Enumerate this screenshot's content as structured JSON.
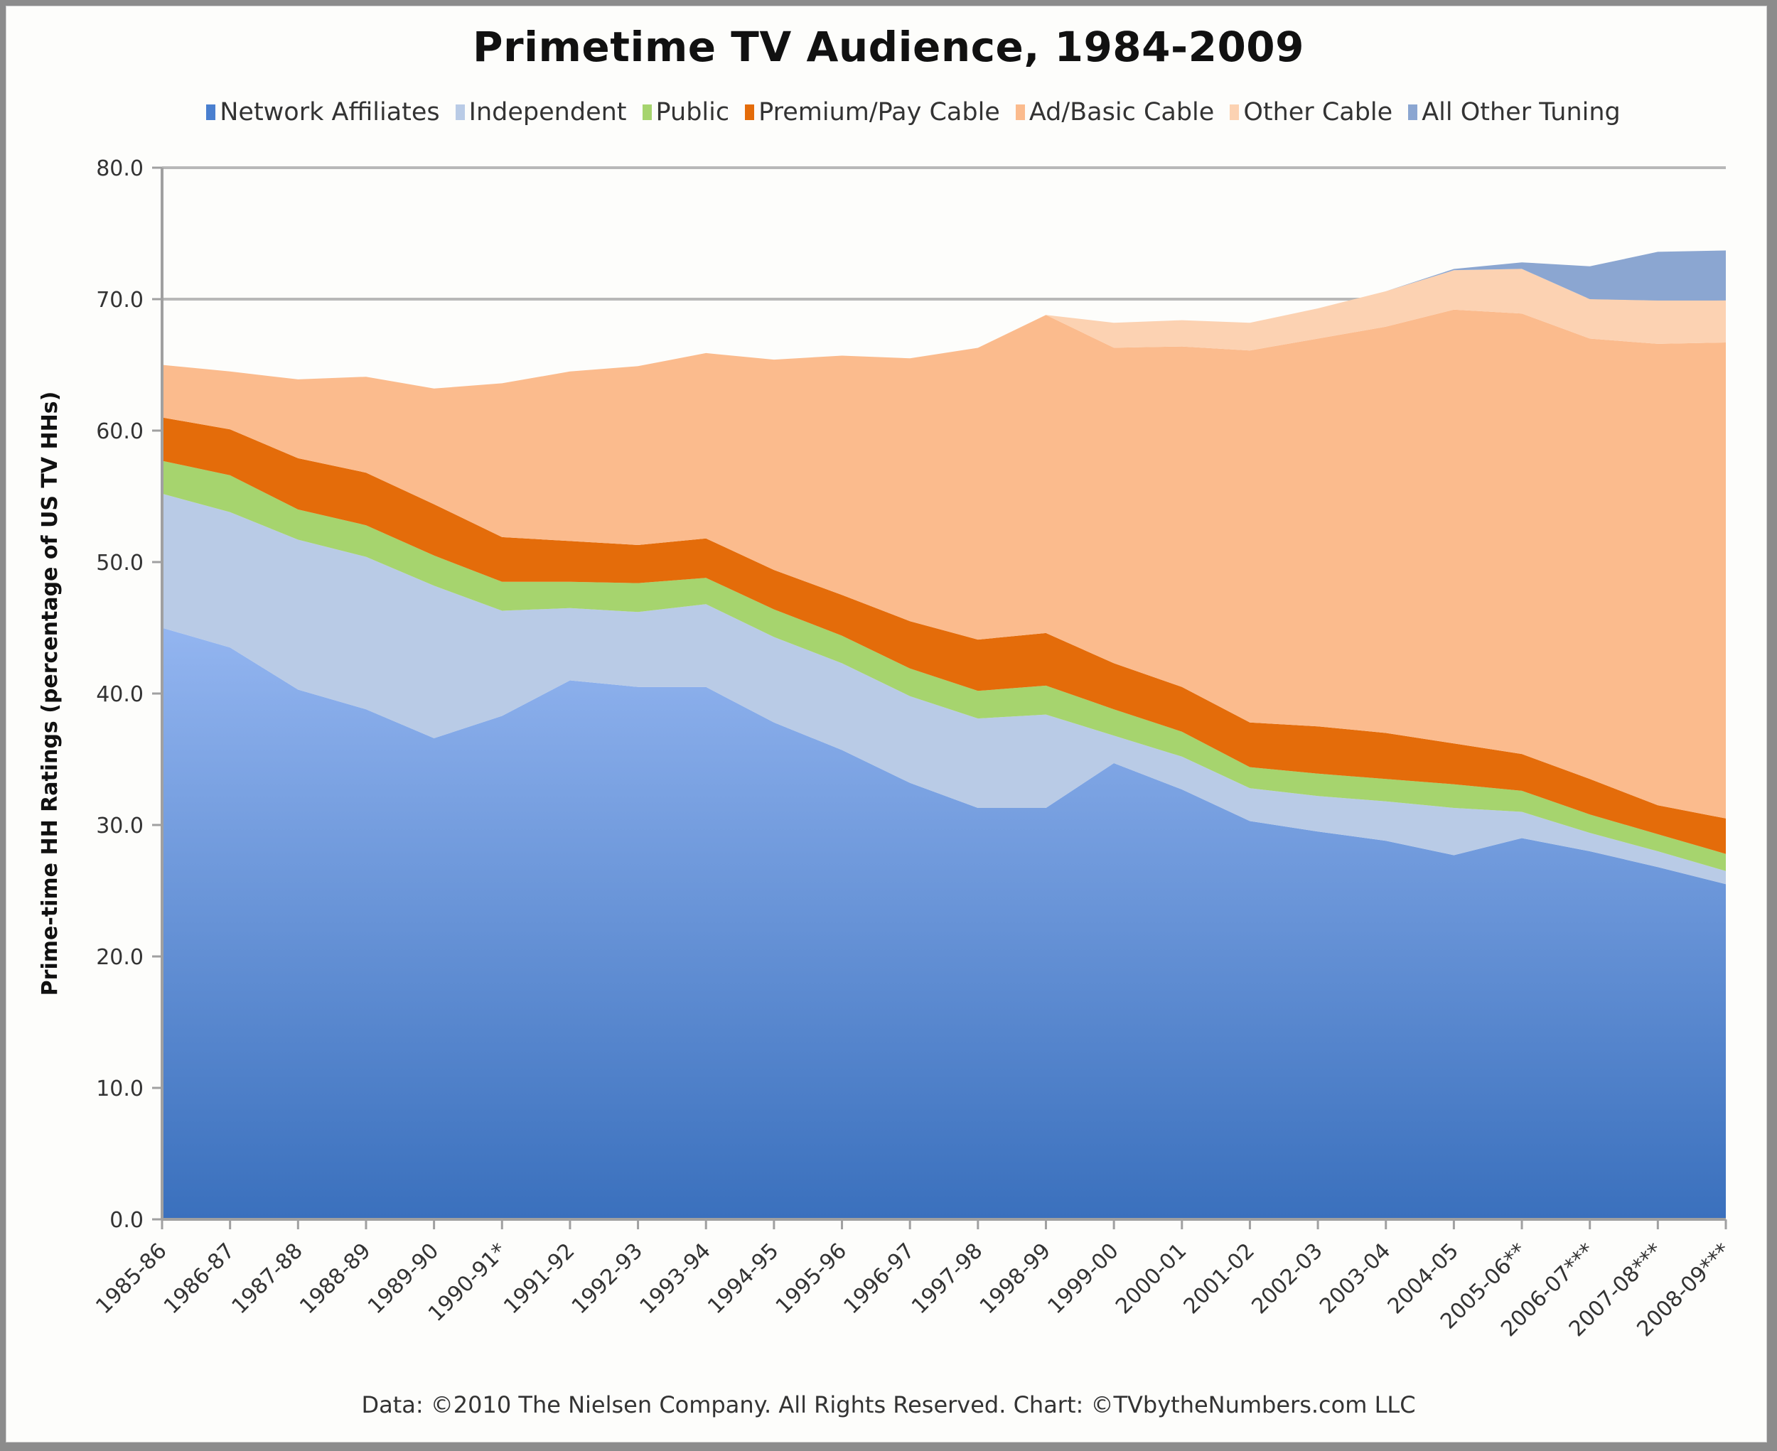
{
  "chart_data": {
    "type": "area",
    "stacked": true,
    "title": "Primetime TV Audience, 1984-2009",
    "xlabel": "",
    "ylabel": "Prime-time HH Ratings (percentage of US TV HHs)",
    "ylim": [
      0,
      80
    ],
    "yticks": [
      "0.0",
      "10.0",
      "20.0",
      "30.0",
      "40.0",
      "50.0",
      "60.0",
      "70.0",
      "80.0"
    ],
    "ytick_values": [
      0,
      10,
      20,
      30,
      40,
      50,
      60,
      70,
      80
    ],
    "grid": "horizontal at 70.0 and 80.0",
    "legend_position": "top",
    "categories": [
      "1985-86",
      "1986-87",
      "1987-88",
      "1988-89",
      "1989-90",
      "1990-91*",
      "1991-92",
      "1992-93",
      "1993-94",
      "1994-95",
      "1995-96",
      "1996-97",
      "1997-98",
      "1998-99",
      "1999-00",
      "2000-01",
      "2001-02",
      "2002-03",
      "2003-04",
      "2004-05",
      "2005-06**",
      "2006-07***",
      "2007-08***",
      "2008-09***"
    ],
    "series": [
      {
        "name": "Network Affiliates",
        "color": "#4a7fcf",
        "values": [
          45.0,
          43.5,
          40.3,
          38.8,
          36.6,
          38.3,
          41.0,
          40.5,
          40.5,
          37.8,
          35.7,
          33.2,
          31.3,
          31.3,
          34.7,
          32.7,
          30.3,
          29.5,
          28.8,
          27.7,
          29.0,
          28.0,
          26.8,
          25.5
        ]
      },
      {
        "name": "Independent",
        "color": "#b9cbe6",
        "values": [
          10.2,
          10.3,
          11.4,
          11.6,
          11.6,
          8.0,
          5.5,
          5.7,
          6.3,
          6.5,
          6.6,
          6.6,
          6.8,
          7.1,
          2.1,
          2.5,
          2.5,
          2.7,
          3.0,
          3.6,
          2.0,
          1.4,
          1.2,
          1.0
        ]
      },
      {
        "name": "Public",
        "color": "#a6d46e",
        "values": [
          2.5,
          2.8,
          2.3,
          2.4,
          2.3,
          2.2,
          2.0,
          2.2,
          2.0,
          2.1,
          2.1,
          2.1,
          2.1,
          2.2,
          2.0,
          1.9,
          1.6,
          1.7,
          1.7,
          1.8,
          1.6,
          1.4,
          1.3,
          1.3
        ]
      },
      {
        "name": "Premium/Pay Cable",
        "color": "#e46c0a",
        "values": [
          3.3,
          3.5,
          3.9,
          4.0,
          3.9,
          3.4,
          3.1,
          2.9,
          3.0,
          3.0,
          3.1,
          3.6,
          3.9,
          4.0,
          3.5,
          3.4,
          3.4,
          3.6,
          3.5,
          3.1,
          2.8,
          2.7,
          2.2,
          2.7
        ]
      },
      {
        "name": "Ad/Basic Cable",
        "color": "#fbbb8d",
        "values": [
          4.0,
          4.4,
          6.0,
          7.3,
          8.8,
          11.7,
          12.9,
          13.6,
          14.1,
          16.0,
          18.2,
          20.0,
          22.2,
          24.2,
          24.0,
          25.9,
          28.3,
          29.5,
          30.9,
          33.0,
          33.5,
          33.5,
          35.1,
          36.2
        ]
      },
      {
        "name": "Other Cable",
        "color": "#fcd2b2",
        "values": [
          0,
          0,
          0,
          0,
          0,
          0,
          0,
          0,
          0,
          0,
          0,
          0,
          0,
          0,
          1.9,
          2.0,
          2.1,
          2.3,
          2.7,
          3.0,
          3.4,
          3.0,
          3.3,
          3.2
        ]
      },
      {
        "name": "All Other Tuning",
        "color": "#8ba6d1",
        "values": [
          0,
          0,
          0,
          0,
          0,
          0,
          0,
          0,
          0,
          0,
          0,
          0,
          0,
          0,
          0,
          0,
          0,
          0,
          0,
          0.1,
          0.5,
          2.5,
          3.7,
          3.8
        ]
      }
    ],
    "footer": "Data: ©2010 The Nielsen Company. All Rights Reserved. Chart: ©TVbytheNumbers.com LLC"
  },
  "legend": [
    {
      "label": "Network Affiliates",
      "color": "#4a7fcf"
    },
    {
      "label": "Independent",
      "color": "#b9cbe6"
    },
    {
      "label": "Public",
      "color": "#a6d46e"
    },
    {
      "label": "Premium/Pay Cable",
      "color": "#e46c0a"
    },
    {
      "label": "Ad/Basic Cable",
      "color": "#fbbb8d"
    },
    {
      "label": "Other Cable",
      "color": "#fcd2b2"
    },
    {
      "label": "All Other Tuning",
      "color": "#8ba6d1"
    }
  ]
}
